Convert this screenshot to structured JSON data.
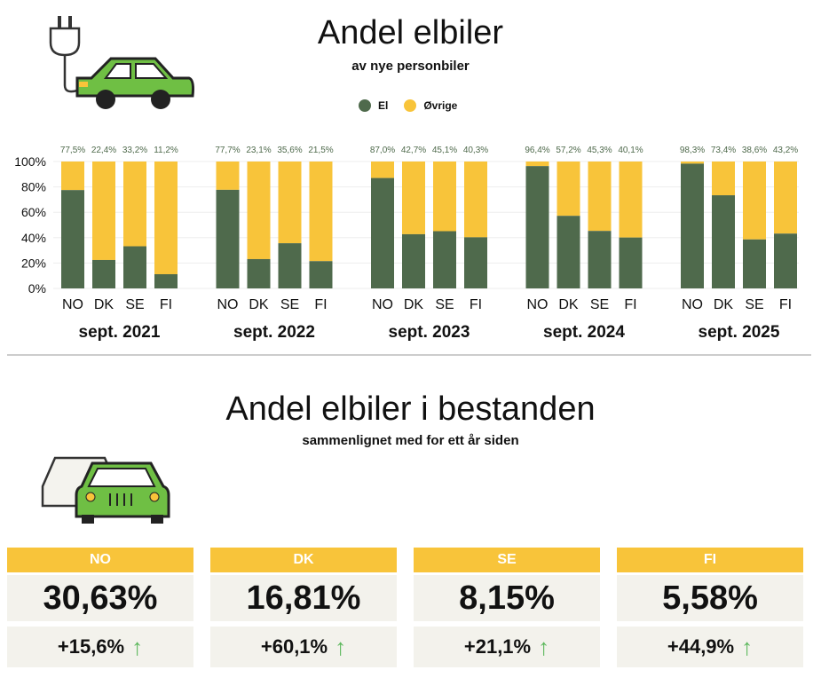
{
  "header": {
    "title": "Andel elbiler",
    "subtitle": "av nye personbiler"
  },
  "legend": [
    {
      "label": "El",
      "color": "#4f6a4c"
    },
    {
      "label": "Øvrige",
      "color": "#f8c43a"
    }
  ],
  "chart_data": {
    "type": "bar",
    "stacked": true,
    "title": "Andel elbiler",
    "subtitle": "av nye personbiler",
    "ylim": [
      0,
      100
    ],
    "yticks": [
      "0%",
      "20%",
      "40%",
      "60%",
      "80%",
      "100%"
    ],
    "groups": [
      {
        "label": "sept. 2021",
        "categories": [
          "NO",
          "DK",
          "SE",
          "FI"
        ],
        "el": [
          77.5,
          22.4,
          33.2,
          11.2
        ],
        "labels": [
          "77,5%",
          "22,4%",
          "33,2%",
          "11,2%"
        ]
      },
      {
        "label": "sept. 2022",
        "categories": [
          "NO",
          "DK",
          "SE",
          "FI"
        ],
        "el": [
          77.7,
          23.1,
          35.6,
          21.5
        ],
        "labels": [
          "77,7%",
          "23,1%",
          "35,6%",
          "21,5%"
        ]
      },
      {
        "label": "sept. 2023",
        "categories": [
          "NO",
          "DK",
          "SE",
          "FI"
        ],
        "el": [
          87.0,
          42.7,
          45.1,
          40.3
        ],
        "labels": [
          "87,0%",
          "42,7%",
          "45,1%",
          "40,3%"
        ]
      },
      {
        "label": "sept. 2024",
        "categories": [
          "NO",
          "DK",
          "SE",
          "FI"
        ],
        "el": [
          96.4,
          57.2,
          45.3,
          40.1
        ],
        "labels": [
          "96,4%",
          "57,2%",
          "45,3%",
          "40,1%"
        ]
      },
      {
        "label": "sept. 2025",
        "categories": [
          "NO",
          "DK",
          "SE",
          "FI"
        ],
        "el": [
          98.3,
          73.4,
          38.6,
          43.2
        ],
        "labels": [
          "98,3%",
          "73,4%",
          "38,6%",
          "43,2%"
        ]
      }
    ]
  },
  "section2": {
    "title": "Andel elbiler i bestanden",
    "subtitle": "sammenlignet med for ett år siden"
  },
  "cards": [
    {
      "country": "NO",
      "value": "30,63%",
      "change": "+15,6%"
    },
    {
      "country": "DK",
      "value": "16,81%",
      "change": "+60,1%"
    },
    {
      "country": "SE",
      "value": "8,15%",
      "change": "+21,1%"
    },
    {
      "country": "FI",
      "value": "5,58%",
      "change": "+44,9%"
    }
  ],
  "icons": {
    "arrow": "↑"
  }
}
